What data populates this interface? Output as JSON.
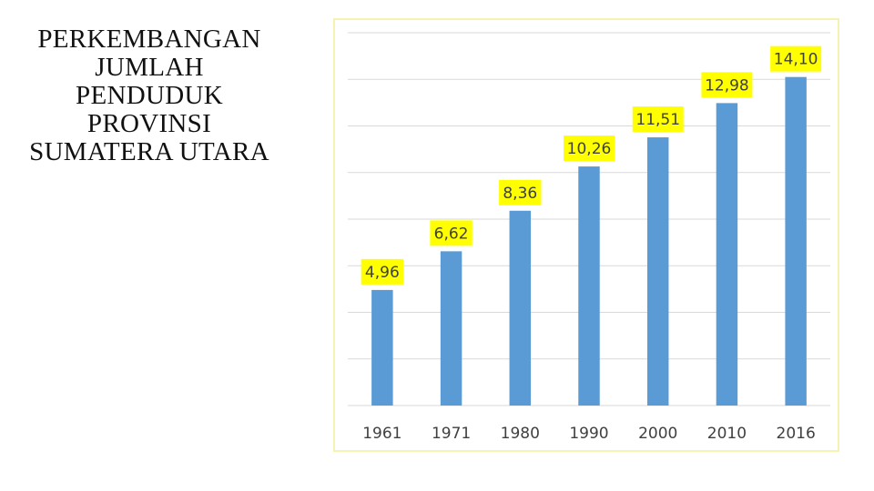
{
  "title": "PERKEMBANGAN\nJUMLAH\nPENDUDUK\nPROVINSI\nSUMATERA UTARA",
  "chart_data": {
    "type": "bar",
    "categories": [
      "1961",
      "1971",
      "1980",
      "1990",
      "2000",
      "2010",
      "2016"
    ],
    "values": [
      4.96,
      6.62,
      8.36,
      10.26,
      11.51,
      12.98,
      14.1
    ],
    "data_labels": [
      "4,96",
      "6,62",
      "8,36",
      "10,26",
      "11,51",
      "12,98",
      "14,10"
    ],
    "ylim": [
      0,
      16
    ],
    "grid": true,
    "y_tick_labels_shown": false,
    "colors": {
      "bar": "#5b9bd5",
      "label_background": "#ffff00",
      "label_text": "#404040",
      "gridline": "#d9d9d9",
      "frame": "#f6f2b0"
    }
  }
}
